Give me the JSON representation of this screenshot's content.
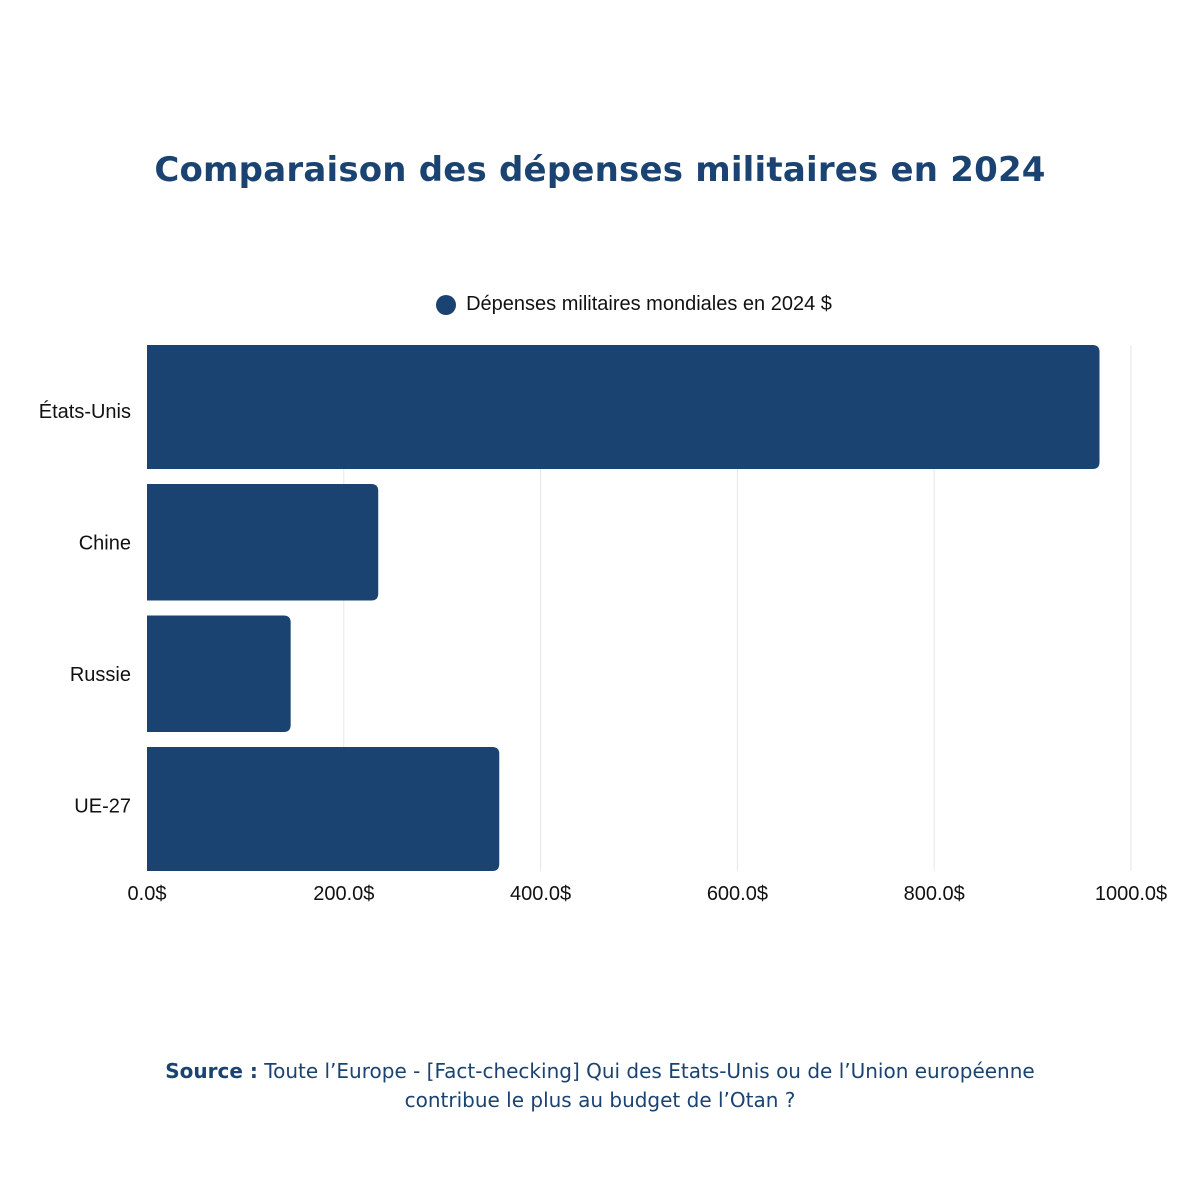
{
  "chart_data": {
    "type": "bar",
    "orientation": "horizontal",
    "title": "Comparaison des dépenses militaires en 2024",
    "categories": [
      "États-Unis",
      "Chine",
      "Russie",
      "UE-27"
    ],
    "series": [
      {
        "name": "Dépenses militaires mondiales en 2024 $",
        "values": [
          968,
          235,
          146,
          358
        ]
      }
    ],
    "xlim": [
      0,
      1000
    ],
    "xticks": [
      0,
      200,
      400,
      600,
      800,
      1000
    ],
    "xtick_labels": [
      "0.0$",
      "200.0$",
      "400.0$",
      "600.0$",
      "800.0$",
      "1000.0$"
    ],
    "grid": "vertical",
    "legend_position": "top-center",
    "bar_color": "#1b4372"
  },
  "source": {
    "label": "Source :",
    "text": "Toute l’Europe - [Fact-checking] Qui des Etats-Unis ou de l’Union européenne contribue le plus au budget de l’Otan ?"
  }
}
